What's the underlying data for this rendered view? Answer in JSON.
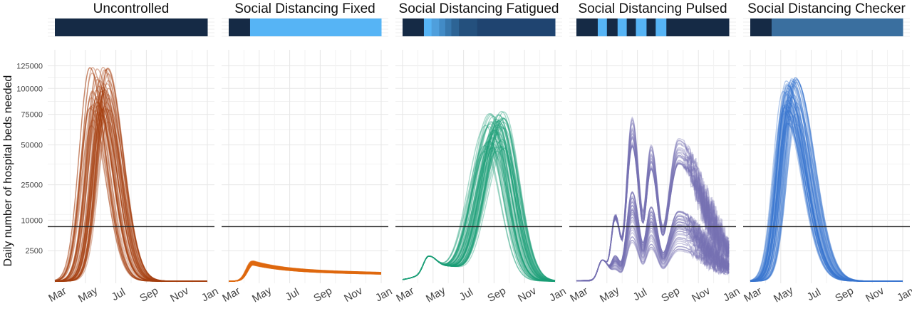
{
  "chart_data": {
    "type": "line",
    "ylabel": "Daily number of hospital beds needed",
    "xlabel": "",
    "x_ticks": [
      "Mar",
      "May",
      "Jul",
      "Sep",
      "Nov",
      "Jan"
    ],
    "y_ticks": [
      2500,
      10000,
      25000,
      50000,
      75000,
      100000,
      125000
    ],
    "y_scale": "sqrt",
    "ylim": [
      0,
      132000
    ],
    "hline": 8000,
    "hline_color": "#222222",
    "grid": true,
    "legend": "none",
    "panels": [
      {
        "title": "Uncontrolled",
        "color": "#a6400f",
        "band_colors": [
          "#152a45"
        ],
        "schedule": [
          {
            "start": 0,
            "end": 1,
            "level": 0
          }
        ],
        "series_summary": {
          "peak_min": 65000,
          "peak_max": 128000,
          "peak_day_min": 70,
          "peak_day_max": 110,
          "n_lines": 60
        }
      },
      {
        "title": "Social Distancing Fixed",
        "color": "#e06a10",
        "band_colors": [
          "#152a45",
          "#56b4f5"
        ],
        "schedule": [
          {
            "start": 0,
            "end": 0.14,
            "level": 0
          },
          {
            "start": 0.14,
            "end": 1,
            "level": 1
          }
        ],
        "series_summary": {
          "peak_min": 700,
          "peak_max": 1100,
          "peak_day_min": 45,
          "peak_day_max": 50,
          "n_lines": 60
        }
      },
      {
        "title": "Social Distancing Fatigued",
        "color": "#1b9e77",
        "band_colors": [
          "#152a45",
          "#56b4f5",
          "#4f9fdc",
          "#428bc6",
          "#3777ad",
          "#2d6495",
          "#24507d",
          "#1f4470"
        ],
        "schedule": [
          {
            "start": 0,
            "end": 0.14,
            "level": 0
          },
          {
            "start": 0.14,
            "end": 0.19,
            "level": 1
          },
          {
            "start": 0.19,
            "end": 0.24,
            "level": 2
          },
          {
            "start": 0.24,
            "end": 0.28,
            "level": 3
          },
          {
            "start": 0.28,
            "end": 0.32,
            "level": 4
          },
          {
            "start": 0.32,
            "end": 0.37,
            "level": 5
          },
          {
            "start": 0.37,
            "end": 0.49,
            "level": 6
          },
          {
            "start": 0.49,
            "end": 1,
            "level": 7
          }
        ],
        "series_summary": {
          "peak_min": 45000,
          "peak_max": 78000,
          "peak_day_min": 165,
          "peak_day_max": 205,
          "n_lines": 60
        }
      },
      {
        "title": "Social Distancing Pulsed",
        "color": "#7570b3",
        "band_colors": [
          "#152a45",
          "#56b4f5"
        ],
        "schedule": [
          {
            "start": 0,
            "end": 0.14,
            "level": 0
          },
          {
            "start": 0.14,
            "end": 0.2,
            "level": 1
          },
          {
            "start": 0.2,
            "end": 0.27,
            "level": 0
          },
          {
            "start": 0.27,
            "end": 0.33,
            "level": 1
          },
          {
            "start": 0.33,
            "end": 0.39,
            "level": 0
          },
          {
            "start": 0.39,
            "end": 0.46,
            "level": 1
          },
          {
            "start": 0.46,
            "end": 0.52,
            "level": 0
          },
          {
            "start": 0.52,
            "end": 0.59,
            "level": 1
          },
          {
            "start": 0.59,
            "end": 1,
            "level": 0
          }
        ],
        "series_summary": {
          "peak_min": 2000,
          "peak_max": 80000,
          "peak_day_min": 110,
          "peak_day_max": 215,
          "n_lines": 60
        }
      },
      {
        "title": "Social Distancing Checker",
        "color": "#3a75d0",
        "band_colors": [
          "#152a45",
          "#3a6f9f"
        ],
        "schedule": [
          {
            "start": 0,
            "end": 0.14,
            "level": 0
          },
          {
            "start": 0.14,
            "end": 1,
            "level": 1
          }
        ],
        "series_summary": {
          "peak_min": 65000,
          "peak_max": 114000,
          "peak_day_min": 65,
          "peak_day_max": 95,
          "n_lines": 60
        }
      }
    ]
  }
}
